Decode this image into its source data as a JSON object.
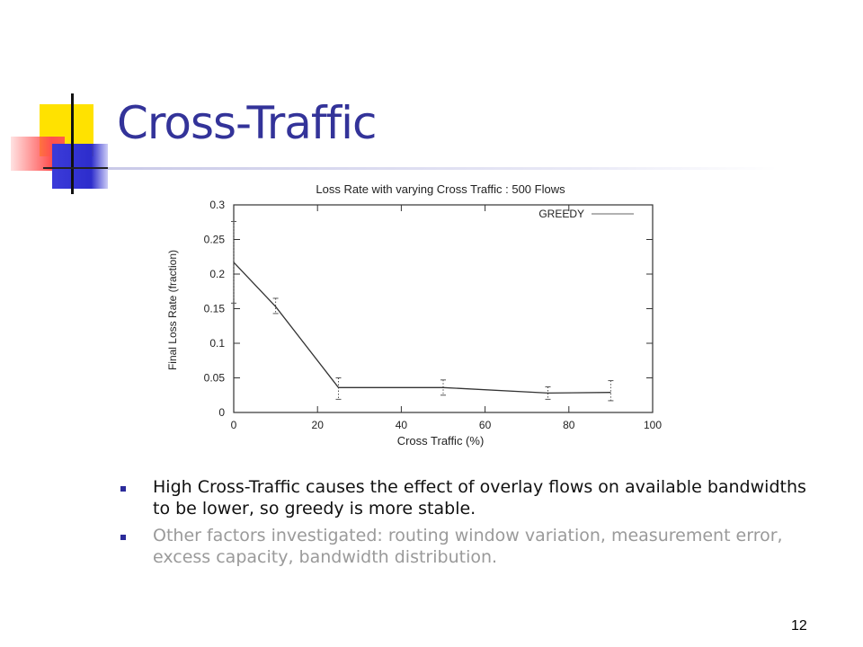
{
  "slide": {
    "title": "Cross-Traffic",
    "page_number": "12",
    "bullets": [
      {
        "text": "High Cross-Traffic causes the effect of overlay flows on available bandwidths to be lower, so greedy is more stable."
      },
      {
        "text": "Other factors investigated: routing window variation, measurement error, excess capacity, bandwidth distribution."
      }
    ],
    "colors": {
      "title": "#333399",
      "bullet_marker": "#2b2b9a",
      "bullet_primary": "#111111",
      "bullet_secondary": "#9a9a9a"
    }
  },
  "chart_data": {
    "type": "line",
    "title": "Loss Rate with varying Cross Traffic : 500 Flows",
    "xlabel": "Cross Traffic (%)",
    "ylabel": "Final Loss Rate (fraction)",
    "xlim": [
      0,
      100
    ],
    "ylim": [
      0,
      0.3
    ],
    "xticks": [
      0,
      20,
      40,
      60,
      80,
      100
    ],
    "yticks": [
      0,
      0.05,
      0.1,
      0.15,
      0.2,
      0.25,
      0.3
    ],
    "ytick_labels": [
      "0",
      "0.05",
      "0.1",
      "0.15",
      "0.2",
      "0.25",
      "0.3"
    ],
    "grid": false,
    "legend": "top-right",
    "series": [
      {
        "name": "GREEDY",
        "x": [
          0,
          10,
          25,
          50,
          75,
          90
        ],
        "y": [
          0.217,
          0.153,
          0.036,
          0.036,
          0.028,
          0.029
        ],
        "err_low": [
          0.158,
          0.143,
          0.019,
          0.025,
          0.019,
          0.017
        ],
        "err_high": [
          0.276,
          0.165,
          0.05,
          0.047,
          0.037,
          0.046
        ]
      }
    ]
  }
}
